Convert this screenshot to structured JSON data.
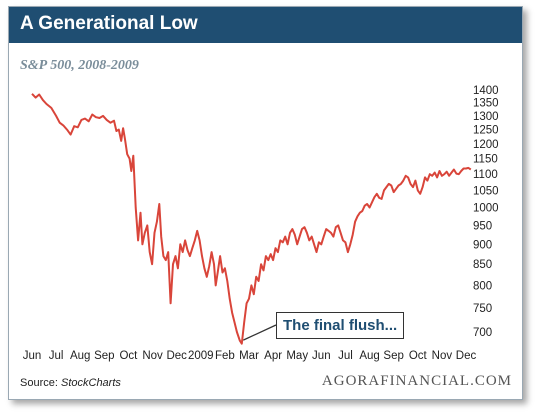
{
  "header": {
    "title": "A Generational Low"
  },
  "chart_data": {
    "type": "line",
    "title": "A Generational Low",
    "subtitle": "S&P 500, 2008-2009",
    "x_labels": [
      "Jun",
      "Jul",
      "Aug",
      "Sep",
      "Oct",
      "Nov",
      "Dec",
      "2009",
      "Feb",
      "Mar",
      "Apr",
      "May",
      "Jun",
      "Jul",
      "Aug",
      "Sep",
      "Oct",
      "Nov",
      "Dec"
    ],
    "y_ticks": [
      700,
      750,
      800,
      850,
      900,
      950,
      1000,
      1050,
      1100,
      1150,
      1200,
      1250,
      1300,
      1350,
      1400
    ],
    "ylim": [
      680,
      1400
    ],
    "y_scale": "log",
    "grid": false,
    "series": [
      {
        "color": "#d9453a",
        "points": [
          [
            0.0,
            1385
          ],
          [
            0.15,
            1370
          ],
          [
            0.3,
            1382
          ],
          [
            0.45,
            1360
          ],
          [
            0.6,
            1345
          ],
          [
            0.8,
            1330
          ],
          [
            1.0,
            1300
          ],
          [
            1.15,
            1275
          ],
          [
            1.3,
            1265
          ],
          [
            1.45,
            1250
          ],
          [
            1.6,
            1232
          ],
          [
            1.75,
            1262
          ],
          [
            1.9,
            1258
          ],
          [
            2.05,
            1285
          ],
          [
            2.2,
            1290
          ],
          [
            2.35,
            1280
          ],
          [
            2.5,
            1305
          ],
          [
            2.65,
            1295
          ],
          [
            2.8,
            1292
          ],
          [
            2.95,
            1300
          ],
          [
            3.1,
            1285
          ],
          [
            3.25,
            1275
          ],
          [
            3.4,
            1282
          ],
          [
            3.5,
            1245
          ],
          [
            3.6,
            1250
          ],
          [
            3.7,
            1210
          ],
          [
            3.78,
            1255
          ],
          [
            3.85,
            1220
          ],
          [
            3.95,
            1165
          ],
          [
            4.05,
            1150
          ],
          [
            4.12,
            1110
          ],
          [
            4.2,
            1160
          ],
          [
            4.3,
            1000
          ],
          [
            4.4,
            910
          ],
          [
            4.5,
            985
          ],
          [
            4.58,
            900
          ],
          [
            4.68,
            930
          ],
          [
            4.78,
            950
          ],
          [
            4.88,
            880
          ],
          [
            4.98,
            850
          ],
          [
            5.08,
            930
          ],
          [
            5.18,
            960
          ],
          [
            5.28,
            1010
          ],
          [
            5.36,
            920
          ],
          [
            5.45,
            870
          ],
          [
            5.55,
            860
          ],
          [
            5.65,
            880
          ],
          [
            5.75,
            760
          ],
          [
            5.85,
            850
          ],
          [
            5.95,
            870
          ],
          [
            6.05,
            840
          ],
          [
            6.15,
            900
          ],
          [
            6.25,
            880
          ],
          [
            6.35,
            910
          ],
          [
            6.45,
            885
          ],
          [
            6.55,
            870
          ],
          [
            6.65,
            890
          ],
          [
            6.75,
            910
          ],
          [
            6.85,
            935
          ],
          [
            6.95,
            910
          ],
          [
            7.05,
            870
          ],
          [
            7.15,
            840
          ],
          [
            7.25,
            820
          ],
          [
            7.35,
            845
          ],
          [
            7.45,
            880
          ],
          [
            7.55,
            850
          ],
          [
            7.62,
            800
          ],
          [
            7.7,
            830
          ],
          [
            7.8,
            870
          ],
          [
            7.9,
            830
          ],
          [
            8.0,
            840
          ],
          [
            8.1,
            810
          ],
          [
            8.2,
            770
          ],
          [
            8.3,
            740
          ],
          [
            8.4,
            720
          ],
          [
            8.5,
            700
          ],
          [
            8.62,
            683
          ],
          [
            8.7,
            677
          ],
          [
            8.8,
            720
          ],
          [
            8.9,
            760
          ],
          [
            9.0,
            770
          ],
          [
            9.1,
            800
          ],
          [
            9.2,
            780
          ],
          [
            9.3,
            820
          ],
          [
            9.4,
            810
          ],
          [
            9.5,
            850
          ],
          [
            9.6,
            835
          ],
          [
            9.7,
            870
          ],
          [
            9.8,
            860
          ],
          [
            9.9,
            875
          ],
          [
            10.0,
            860
          ],
          [
            10.1,
            890
          ],
          [
            10.2,
            880
          ],
          [
            10.3,
            910
          ],
          [
            10.4,
            905
          ],
          [
            10.5,
            920
          ],
          [
            10.6,
            900
          ],
          [
            10.7,
            930
          ],
          [
            10.8,
            940
          ],
          [
            10.9,
            925
          ],
          [
            11.0,
            900
          ],
          [
            11.1,
            920
          ],
          [
            11.2,
            940
          ],
          [
            11.3,
            945
          ],
          [
            11.4,
            930
          ],
          [
            11.5,
            910
          ],
          [
            11.6,
            920
          ],
          [
            11.7,
            900
          ],
          [
            11.8,
            880
          ],
          [
            11.9,
            905
          ],
          [
            12.0,
            900
          ],
          [
            12.1,
            920
          ],
          [
            12.2,
            940
          ],
          [
            12.3,
            935
          ],
          [
            12.4,
            930
          ],
          [
            12.5,
            920
          ],
          [
            12.6,
            945
          ],
          [
            12.7,
            950
          ],
          [
            12.8,
            930
          ],
          [
            12.9,
            910
          ],
          [
            13.0,
            905
          ],
          [
            13.1,
            880
          ],
          [
            13.2,
            900
          ],
          [
            13.3,
            925
          ],
          [
            13.4,
            960
          ],
          [
            13.5,
            975
          ],
          [
            13.6,
            985
          ],
          [
            13.7,
            990
          ],
          [
            13.8,
            1005
          ],
          [
            13.9,
            1010
          ],
          [
            14.0,
            1000
          ],
          [
            14.1,
            1015
          ],
          [
            14.2,
            1030
          ],
          [
            14.3,
            1040
          ],
          [
            14.4,
            1028
          ],
          [
            14.5,
            1025
          ],
          [
            14.6,
            1050
          ],
          [
            14.7,
            1060
          ],
          [
            14.8,
            1070
          ],
          [
            14.9,
            1065
          ],
          [
            15.0,
            1045
          ],
          [
            15.1,
            1055
          ],
          [
            15.2,
            1065
          ],
          [
            15.3,
            1070
          ],
          [
            15.4,
            1080
          ],
          [
            15.5,
            1095
          ],
          [
            15.6,
            1090
          ],
          [
            15.7,
            1070
          ],
          [
            15.8,
            1060
          ],
          [
            15.9,
            1080
          ],
          [
            16.0,
            1050
          ],
          [
            16.1,
            1040
          ],
          [
            16.2,
            1060
          ],
          [
            16.3,
            1090
          ],
          [
            16.4,
            1080
          ],
          [
            16.5,
            1100
          ],
          [
            16.6,
            1095
          ],
          [
            16.7,
            1105
          ],
          [
            16.8,
            1090
          ],
          [
            16.9,
            1110
          ],
          [
            17.0,
            1095
          ],
          [
            17.1,
            1100
          ],
          [
            17.2,
            1108
          ],
          [
            17.3,
            1095
          ],
          [
            17.4,
            1105
          ],
          [
            17.5,
            1115
          ],
          [
            17.6,
            1102
          ],
          [
            17.7,
            1100
          ],
          [
            17.8,
            1110
          ],
          [
            17.9,
            1118
          ],
          [
            18.0,
            1118
          ],
          [
            18.1,
            1120
          ],
          [
            18.2,
            1115
          ]
        ]
      }
    ],
    "annotation": {
      "text": "The final flush...",
      "x": 8.68,
      "y": 680
    }
  },
  "footer": {
    "source_label": "Source:",
    "source_name": "StockCharts",
    "brand": "AGORAFINANCIAL.COM"
  }
}
